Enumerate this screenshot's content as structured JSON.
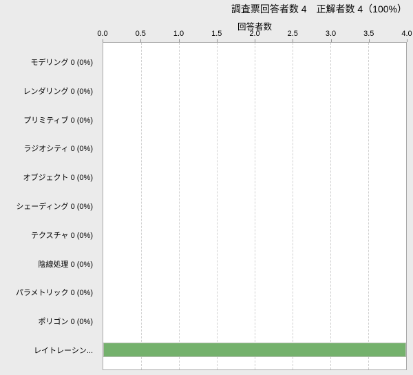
{
  "header": {
    "summary_text": "調査票回答者数 4　正解者数 4（100%）"
  },
  "chart_data": {
    "type": "bar",
    "orientation": "horizontal",
    "title": "回答者数",
    "xlabel": "回答者数",
    "ylabel": "",
    "xlim": [
      0.0,
      4.0
    ],
    "xticks": [
      0.0,
      0.5,
      1.0,
      1.5,
      2.0,
      2.5,
      3.0,
      3.5,
      4.0
    ],
    "xtick_labels": [
      "0.0",
      "0.5",
      "1.0",
      "1.5",
      "2.0",
      "2.5",
      "3.0",
      "3.5",
      "4.0"
    ],
    "grid": "vertical-dashed",
    "legend": "none",
    "categories": [
      "モデリング",
      "レンダリング",
      "プリミティブ",
      "ラジオシティ",
      "オブジェクト",
      "シェーディング",
      "テクスチャ",
      "陰線処理",
      "パラメトリック",
      "ポリゴン",
      "レイトレーシン..."
    ],
    "row_labels": [
      "モデリング 0 (0%)",
      "レンダリング 0 (0%)",
      "プリミティブ 0 (0%)",
      "ラジオシティ 0 (0%)",
      "オブジェクト 0 (0%)",
      "シェーディング 0 (0%)",
      "テクスチャ 0 (0%)",
      "陰線処理 0 (0%)",
      "パラメトリック 0 (0%)",
      "ポリゴン 0 (0%)",
      "レイトレーシン..."
    ],
    "values": [
      0,
      0,
      0,
      0,
      0,
      0,
      0,
      0,
      0,
      0,
      4
    ],
    "colors": {
      "bar": "#74b16c",
      "bar_outline": "#b5beb1",
      "plot_bg": "#ffffff",
      "page_bg": "#ebebeb",
      "gridline": "#cfcfcf",
      "axis": "#a6a6a6",
      "text": "#000000"
    }
  }
}
